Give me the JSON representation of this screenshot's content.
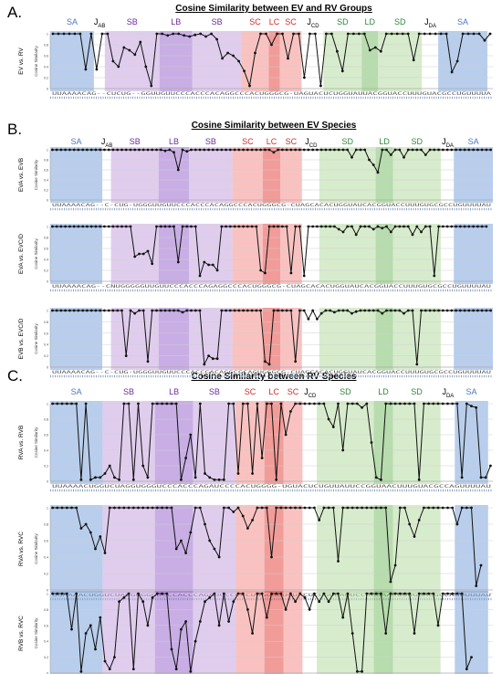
{
  "panels": [
    {
      "label": "A.",
      "title": "Cosine Similarity between EV and RV Groups",
      "regions": [
        {
          "name": "SA",
          "x0": 0,
          "x1": 8,
          "color": "#7ea6dc",
          "text": "#4a78c2"
        },
        {
          "name": "J_AB",
          "x0": 8,
          "x1": 10,
          "color": null,
          "text": "#000000"
        },
        {
          "name": "SB",
          "x0": 10,
          "x1": 20,
          "color": "#c7a4e0",
          "text": "#6a2d9c"
        },
        {
          "name": "LB",
          "x0": 20,
          "x1": 26,
          "color": "#9b6bd0",
          "text": "#6a2d9c"
        },
        {
          "name": "SB",
          "x0": 26,
          "x1": 35,
          "color": "#c7a4e0",
          "text": "#6a2d9c"
        },
        {
          "name": "SC",
          "x0": 35,
          "x1": 40,
          "color": "#f4908c",
          "text": "#d12b2b"
        },
        {
          "name": "LC",
          "x0": 40,
          "x1": 42,
          "color": "#e64b45",
          "text": "#d12b2b"
        },
        {
          "name": "SC",
          "x0": 42,
          "x1": 46,
          "color": "#f4908c",
          "text": "#d12b2b"
        },
        {
          "name": "J_CD",
          "x0": 46,
          "x1": 50,
          "color": null,
          "text": "#000000"
        },
        {
          "name": "SD",
          "x0": 50,
          "x1": 57,
          "color": "#b6dca2",
          "text": "#2e8a3a"
        },
        {
          "name": "LD",
          "x0": 57,
          "x1": 60,
          "color": "#7cc06a",
          "text": "#2e8a3a"
        },
        {
          "name": "SD",
          "x0": 60,
          "x1": 68,
          "color": "#b6dca2",
          "text": "#2e8a3a"
        },
        {
          "name": "J_DA",
          "x0": 68,
          "x1": 71,
          "color": null,
          "text": "#000000"
        },
        {
          "name": "SA",
          "x0": 71,
          "x1": 80,
          "color": "#7ea6dc",
          "text": "#4a78c2"
        }
      ],
      "plots": [
        {
          "ylabel": "EV vs. RV",
          "axis_title": "Cosine Similarity",
          "y_ticks": [
            "1",
            "0.8",
            "0.6",
            "0.4",
            "0.2",
            "0"
          ],
          "sequence": "UUAAAACAG--CUCUG--GGUUGUUCCCACCCACAGGCCCACUGGGCG-UAGUACUCUGGUAUUACGGUACCUUUGUACGCCUGUUUUA",
          "values": [
            1,
            1,
            1,
            1,
            1,
            1,
            0.35,
            1,
            0.35,
            1,
            1,
            0.5,
            0.4,
            0.75,
            0.7,
            0.62,
            0.85,
            0.4,
            0.05,
            1,
            1,
            0.97,
            1,
            1,
            0.97,
            0.95,
            0.98,
            1,
            0.95,
            1,
            0.9,
            0.55,
            0.65,
            0.6,
            0.5,
            0.32,
            0.05,
            0.65,
            1,
            1,
            0.8,
            1,
            1,
            0.55,
            1,
            1,
            0.2,
            1,
            1,
            0.05,
            1,
            1,
            0.68,
            0.32,
            1,
            1,
            1,
            1,
            0.7,
            0.75,
            0.68,
            1,
            1,
            1,
            1,
            1,
            0.52,
            1,
            1,
            1,
            1,
            1,
            1,
            0.3,
            0.5,
            1,
            1,
            1,
            1,
            0.88,
            1
          ]
        }
      ]
    },
    {
      "label": "B.",
      "title": "Cosine Similarity between EV Species",
      "regions": [
        {
          "name": "SA",
          "x0": 0,
          "x1": 12,
          "color": "#7ea6dc",
          "text": "#4a78c2"
        },
        {
          "name": "J_AB",
          "x0": 12,
          "x1": 14,
          "color": null,
          "text": "#000000"
        },
        {
          "name": "SB",
          "x0": 14,
          "x1": 25,
          "color": "#c7a4e0",
          "text": "#6a2d9c"
        },
        {
          "name": "LB",
          "x0": 25,
          "x1": 32,
          "color": "#9b6bd0",
          "text": "#6a2d9c"
        },
        {
          "name": "SB",
          "x0": 32,
          "x1": 42,
          "color": "#c7a4e0",
          "text": "#6a2d9c"
        },
        {
          "name": "SC",
          "x0": 42,
          "x1": 49,
          "color": "#f4908c",
          "text": "#d12b2b"
        },
        {
          "name": "LC",
          "x0": 49,
          "x1": 53,
          "color": "#e64b45",
          "text": "#d12b2b"
        },
        {
          "name": "SC",
          "x0": 53,
          "x1": 58,
          "color": "#f4908c",
          "text": "#d12b2b"
        },
        {
          "name": "J_CD",
          "x0": 58,
          "x1": 62,
          "color": null,
          "text": "#000000"
        },
        {
          "name": "SD",
          "x0": 62,
          "x1": 75,
          "color": "#b6dca2",
          "text": "#2e8a3a"
        },
        {
          "name": "LD",
          "x0": 75,
          "x1": 79,
          "color": "#7cc06a",
          "text": "#2e8a3a"
        },
        {
          "name": "SD",
          "x0": 79,
          "x1": 90,
          "color": "#b6dca2",
          "text": "#2e8a3a"
        },
        {
          "name": "J_DA",
          "x0": 90,
          "x1": 93,
          "color": null,
          "text": "#000000"
        },
        {
          "name": "SA",
          "x0": 93,
          "x1": 102,
          "color": "#7ea6dc",
          "text": "#4a78c2"
        }
      ],
      "plots": [
        {
          "ylabel": "EVA vs. EVB",
          "axis_title": "Cosine Similarity",
          "y_ticks": [
            "1",
            "0.8",
            "0.6",
            "0.4",
            "0.2",
            "0"
          ],
          "sequence": "UUAAAACAG--C-CUG-UGGGUUGUUCCCACCCACAGGCCCACUGGGCG-CUAGCACACUGGUAUCACGGUACCUUUGUGCGCCUGUUUUAU",
          "values": [
            1,
            1,
            1,
            1,
            1,
            1,
            1,
            1,
            1,
            1,
            1,
            1,
            1,
            1,
            1,
            1,
            1,
            1,
            1,
            1,
            1,
            1,
            1,
            1,
            1,
            1,
            0.98,
            1,
            0.95,
            0.6,
            1,
            0.97,
            1,
            1,
            1,
            1,
            1,
            1,
            1,
            1,
            1,
            1,
            1,
            1,
            1,
            1,
            1,
            1,
            1,
            1,
            1,
            0.95,
            1,
            1,
            1,
            1,
            1,
            1,
            1,
            1,
            1,
            1,
            1,
            1,
            1,
            1,
            1,
            1,
            1,
            0.85,
            1,
            1,
            1,
            0.8,
            0.7,
            0.55,
            1,
            1,
            0.9,
            1,
            1,
            0.85,
            1,
            1,
            1,
            1,
            0.9,
            1,
            1,
            1,
            1,
            1,
            1,
            1,
            1,
            1,
            1,
            1,
            1,
            1,
            1,
            1
          ]
        },
        {
          "ylabel": "EVA vs. EVC/D",
          "axis_title": "Cosine Similarity",
          "y_ticks": [
            "1",
            "0.8",
            "0.6",
            "0.4",
            "0.2",
            "0"
          ],
          "sequence": "UUAAAACAG--CNUGGGGGUUGUUCCCACCCAGAGGCCCACUGGGCG-CUAGCACACUGGUAUCACGGUACCUUUGUGCGCCUGUUUUAU",
          "values": [
            1,
            1,
            1,
            1,
            1,
            1,
            1,
            1,
            1,
            1,
            1,
            1,
            1,
            1,
            1,
            1,
            1,
            1,
            1,
            0.45,
            0.5,
            0.5,
            0.55,
            0.32,
            1,
            1,
            1,
            1,
            1,
            0.35,
            1,
            1,
            1,
            1,
            0.1,
            0.35,
            0.3,
            0.3,
            0.2,
            1,
            1,
            1,
            1,
            1,
            1,
            1,
            1,
            1,
            0.2,
            0.15,
            1,
            1,
            1,
            1,
            1,
            0.15,
            1,
            1,
            0.1,
            1,
            1,
            1,
            1,
            1,
            1,
            1,
            0.95,
            0.9,
            1,
            1,
            0.85,
            1,
            1,
            1,
            0.95,
            1,
            0.97,
            1,
            0.9,
            1,
            1,
            1,
            1,
            0.85,
            1,
            0.9,
            1,
            1,
            0.1,
            1,
            1,
            1,
            1,
            1,
            1,
            1,
            1,
            1,
            1,
            1,
            1
          ]
        },
        {
          "ylabel": "EVB vs. EVC/D",
          "axis_title": "Cosine Similarity",
          "y_ticks": [
            "1",
            "0.8",
            "0.6",
            "0.4",
            "0.2",
            "0"
          ],
          "sequence": "UUAAAACAG--C-CUG-UGGGUUGUUCCCACCCACAGGCCCACUGGGCG-CUAGCACACUGGUAUCACGGUACCUUUGUGCGCCUGUUUUAU",
          "values": [
            1,
            1,
            1,
            1,
            1,
            1,
            1,
            1,
            1,
            1,
            1,
            1,
            1,
            1,
            1,
            1,
            1,
            0.2,
            1,
            0.95,
            1,
            1,
            0.1,
            1,
            1,
            1,
            1,
            1,
            1,
            1,
            0.97,
            1,
            1,
            1,
            1,
            0.05,
            0.2,
            0.15,
            0.15,
            1,
            1,
            1,
            1,
            1,
            1,
            1,
            1,
            1,
            1,
            0.1,
            0.05,
            1,
            1,
            1,
            1,
            1,
            0.1,
            1,
            1,
            0.85,
            1,
            0.85,
            0.95,
            1,
            1,
            0.97,
            1,
            1,
            1,
            0.95,
            0.98,
            1,
            1,
            1,
            1,
            1,
            0.95,
            1,
            1,
            1,
            1,
            0.95,
            1,
            1,
            0.05,
            1,
            1,
            1,
            1,
            1,
            1,
            1,
            1,
            1,
            1,
            1,
            1,
            1,
            1,
            1,
            1,
            1
          ]
        }
      ]
    },
    {
      "label": "C.",
      "title": "Cosine Similarity between RV Species",
      "regions": [
        {
          "name": "SA",
          "x0": 0,
          "x1": 11,
          "color": "#7ea6dc",
          "text": "#4a78c2"
        },
        {
          "name": "SB",
          "x0": 11,
          "x1": 22,
          "color": "#c7a4e0",
          "text": "#6a2d9c"
        },
        {
          "name": "LB",
          "x0": 22,
          "x1": 30,
          "color": "#9b6bd0",
          "text": "#6a2d9c"
        },
        {
          "name": "SB",
          "x0": 30,
          "x1": 39,
          "color": "#c7a4e0",
          "text": "#6a2d9c"
        },
        {
          "name": "SC",
          "x0": 39,
          "x1": 45,
          "color": "#f4908c",
          "text": "#d12b2b"
        },
        {
          "name": "LC",
          "x0": 45,
          "x1": 49,
          "color": "#e64b45",
          "text": "#d12b2b"
        },
        {
          "name": "SC",
          "x0": 49,
          "x1": 53,
          "color": "#f4908c",
          "text": "#d12b2b"
        },
        {
          "name": "J_CD",
          "x0": 53,
          "x1": 56,
          "color": null,
          "text": "#000000"
        },
        {
          "name": "SD",
          "x0": 56,
          "x1": 68,
          "color": "#b6dca2",
          "text": "#2e8a3a"
        },
        {
          "name": "LD",
          "x0": 68,
          "x1": 72,
          "color": "#7cc06a",
          "text": "#2e8a3a"
        },
        {
          "name": "SD",
          "x0": 72,
          "x1": 82,
          "color": "#b6dca2",
          "text": "#2e8a3a"
        },
        {
          "name": "J_DA",
          "x0": 82,
          "x1": 85,
          "color": null,
          "text": "#000000"
        },
        {
          "name": "SA",
          "x0": 85,
          "x1": 92,
          "color": "#7ea6dc",
          "text": "#4a78c2"
        }
      ],
      "plots": [
        {
          "ylabel": "RVA vs. RVB",
          "axis_title": "Cosine Similarity",
          "y_ticks": [
            "1",
            "0.8",
            "0.6",
            "0.4",
            "0.2",
            "0"
          ],
          "sequence": "UUAAAACUGGUCUAGGUGGGUCCCACCCAGAUCCCCACUGGGG-UGUACUCUGUUAUUCCGGUAACUUUGUACGCCAGUUUUAU",
          "values": [
            1,
            1,
            1,
            1,
            1,
            1,
            0.02,
            1,
            0.02,
            0.05,
            0.05,
            0.1,
            0.2,
            0.05,
            0.02,
            1,
            1,
            0.02,
            1,
            0.2,
            0.05,
            1,
            1,
            1,
            1,
            1,
            1,
            0.02,
            0.3,
            0.6,
            0.05,
            1,
            0.1,
            0.05,
            0.02,
            0.02,
            0.02,
            1,
            1,
            0.1,
            1,
            1,
            0.1,
            1,
            0.3,
            1,
            1,
            0.02,
            1,
            0.6,
            0.9,
            1,
            1,
            1,
            1,
            1,
            1,
            1,
            0.8,
            0.7,
            1,
            0.4,
            1,
            1,
            1,
            0.95,
            1,
            0.5,
            0.05,
            0.02,
            1,
            1,
            1,
            1,
            1,
            1,
            1,
            0.02,
            1,
            1,
            1,
            1,
            1,
            1,
            1,
            1,
            0.05,
            1,
            0.97,
            0.95,
            0.05,
            0.05,
            0.2
          ]
        },
        {
          "ylabel": "RVA vs. RVC",
          "axis_title": "Cosine Similarity",
          "y_ticks": [
            "1",
            "0.8",
            "0.6",
            "0.4",
            "0.2",
            "0"
          ],
          "sequence": "UUAAAACUGGUCUAGGUGGGUCCCACCCAGAUCCCCACUGGGGUUGUACUCUGUUAUUCCGGUAACUUUGUACGCCAGUUUUAU",
          "values": [
            1,
            1,
            1,
            1,
            1,
            1,
            0.75,
            0.8,
            0.7,
            0.5,
            0.65,
            0.45,
            1,
            1,
            1,
            1,
            1,
            1,
            1,
            1,
            1,
            1,
            1,
            1,
            1,
            1,
            0.5,
            0.6,
            0.45,
            0.7,
            1,
            1,
            0.8,
            0.6,
            0.5,
            0.4,
            1,
            1,
            0.95,
            1,
            0.9,
            0.75,
            0.85,
            1,
            1,
            1,
            0.4,
            1,
            1,
            1,
            1,
            1,
            1,
            1,
            1,
            1,
            0.85,
            1,
            1,
            1,
            0.35,
            1,
            1,
            1,
            1,
            1,
            1,
            1,
            1,
            1,
            1,
            0.1,
            0.3,
            1,
            1,
            0.8,
            0.65,
            0.85,
            1,
            1,
            1,
            1,
            1,
            1,
            1,
            0.8,
            1,
            1,
            1,
            0.05,
            0.3
          ]
        },
        {
          "ylabel": "RVB vs. RVC",
          "axis_title": "Cosine Similarity",
          "y_ticks": [
            "1",
            "0.8",
            "0.6",
            "0.4",
            "0.2",
            "0"
          ],
          "sequence": "UUAAAACUGG-GGGATGGGUA-UCCCACCAUCCG-ACCCACUGGCGGGTGTACUCUGGTATTTT-GGUAACUUUGUACGCCUGUUUU-",
          "values": [
            1,
            1,
            1,
            1,
            0.55,
            1,
            0.02,
            0.5,
            0.6,
            0.3,
            0.7,
            0.15,
            0.05,
            0.2,
            0.9,
            0.95,
            1,
            0.05,
            1,
            0.9,
            0.6,
            0.95,
            1,
            1,
            1,
            0.3,
            0.05,
            0.55,
            0.65,
            0.02,
            0.4,
            0.65,
            0.9,
            0.95,
            1,
            0.6,
            1,
            0.65,
            0.9,
            1,
            1,
            0.8,
            0.5,
            1,
            1,
            0.7,
            1,
            1,
            1,
            0.8,
            1,
            0.9,
            1,
            0.95,
            0.8,
            1,
            0.9,
            1,
            0.9,
            1,
            1,
            0.7,
            1,
            0.5,
            0.02,
            0.02,
            1,
            1,
            1,
            1,
            0.5,
            1,
            1,
            1,
            1,
            1,
            0.5,
            1,
            1,
            1,
            1,
            0.6,
            1,
            1,
            1,
            1,
            1,
            0.05,
            0.2
          ]
        }
      ]
    }
  ]
}
